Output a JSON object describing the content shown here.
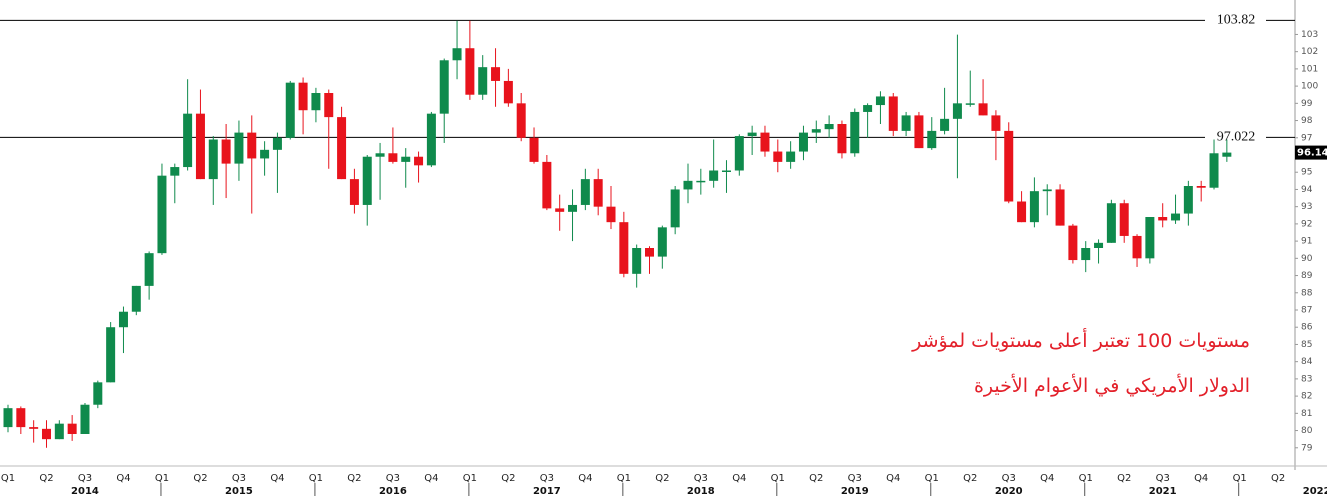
{
  "chart_data": {
    "type": "candlestick",
    "up_color": "#0f8a4c",
    "down_color": "#e8131c",
    "ylim": [
      78,
      105
    ],
    "yticks": [
      79,
      80,
      81,
      82,
      83,
      84,
      85,
      86,
      87,
      88,
      89,
      90,
      91,
      92,
      93,
      94,
      95,
      96,
      97,
      98,
      99,
      100,
      101,
      102,
      103
    ],
    "levels": [
      103.82,
      97.022
    ],
    "last_price": 96.14,
    "quarter_labels": [
      "Q1",
      "Q2",
      "Q3",
      "Q4",
      "Q1",
      "Q2",
      "Q3",
      "Q4",
      "Q1",
      "Q2",
      "Q3",
      "Q4",
      "Q1",
      "Q2",
      "Q3",
      "Q4",
      "Q1",
      "Q2",
      "Q3",
      "Q4",
      "Q1",
      "Q2",
      "Q3",
      "Q4",
      "Q1",
      "Q2",
      "Q3",
      "Q4",
      "Q1",
      "Q2",
      "Q3",
      "Q4",
      "Q1",
      "Q2"
    ],
    "year_labels": [
      "2014",
      "2015",
      "2016",
      "2017",
      "2018",
      "2019",
      "2020",
      "2021",
      "2022"
    ],
    "annotations": [
      "مستويات 100 تعتبر أعلى مستويات لمؤشر",
      "الدولار الأمريكي في الأعوام الأخيرة"
    ],
    "candles": [
      [
        80.2,
        81.5,
        79.9,
        81.3
      ],
      [
        81.3,
        81.4,
        79.8,
        80.2
      ],
      [
        80.2,
        80.6,
        79.3,
        80.1
      ],
      [
        80.1,
        80.6,
        79.0,
        79.5
      ],
      [
        79.5,
        80.6,
        79.5,
        80.4
      ],
      [
        80.4,
        80.9,
        79.4,
        79.8
      ],
      [
        79.8,
        81.6,
        79.8,
        81.5
      ],
      [
        81.5,
        82.9,
        81.3,
        82.8
      ],
      [
        82.8,
        86.3,
        82.8,
        86.0
      ],
      [
        86.0,
        87.2,
        84.5,
        86.9
      ],
      [
        86.9,
        88.4,
        86.7,
        88.4
      ],
      [
        88.4,
        90.4,
        87.6,
        90.3
      ],
      [
        90.3,
        95.5,
        90.2,
        94.8
      ],
      [
        94.8,
        95.5,
        93.2,
        95.3
      ],
      [
        95.3,
        100.4,
        95.1,
        98.4
      ],
      [
        98.4,
        99.8,
        94.6,
        94.6
      ],
      [
        94.6,
        97.1,
        93.1,
        96.9
      ],
      [
        96.9,
        97.8,
        93.5,
        95.5
      ],
      [
        95.5,
        98.0,
        94.5,
        97.3
      ],
      [
        97.3,
        98.3,
        92.6,
        95.8
      ],
      [
        95.8,
        96.8,
        94.8,
        96.3
      ],
      [
        96.3,
        97.3,
        93.8,
        97.0
      ],
      [
        97.0,
        100.3,
        96.9,
        100.2
      ],
      [
        100.2,
        100.5,
        97.2,
        98.6
      ],
      [
        98.6,
        99.9,
        97.9,
        99.6
      ],
      [
        99.6,
        99.8,
        95.2,
        98.2
      ],
      [
        98.2,
        98.8,
        94.6,
        94.6
      ],
      [
        94.6,
        95.2,
        92.6,
        93.1
      ],
      [
        93.1,
        96.0,
        91.9,
        95.9
      ],
      [
        95.9,
        96.7,
        93.4,
        96.1
      ],
      [
        96.1,
        97.6,
        95.5,
        95.6
      ],
      [
        95.6,
        96.4,
        94.1,
        95.9
      ],
      [
        95.9,
        96.2,
        94.4,
        95.4
      ],
      [
        95.4,
        98.5,
        95.3,
        98.4
      ],
      [
        98.4,
        101.6,
        96.7,
        101.5
      ],
      [
        101.5,
        103.8,
        100.4,
        102.2
      ],
      [
        102.2,
        103.8,
        99.2,
        99.5
      ],
      [
        99.5,
        101.8,
        99.2,
        101.1
      ],
      [
        101.1,
        102.2,
        98.8,
        100.3
      ],
      [
        100.3,
        101.0,
        98.8,
        99.0
      ],
      [
        99.0,
        99.6,
        96.8,
        97.0
      ],
      [
        97.0,
        97.6,
        95.5,
        95.6
      ],
      [
        95.6,
        96.0,
        92.8,
        92.9
      ],
      [
        92.9,
        93.7,
        91.6,
        92.7
      ],
      [
        92.7,
        94.0,
        91.0,
        93.1
      ],
      [
        93.1,
        95.2,
        92.8,
        94.6
      ],
      [
        94.6,
        95.2,
        92.5,
        93.0
      ],
      [
        93.0,
        94.2,
        91.7,
        92.1
      ],
      [
        92.1,
        92.7,
        88.9,
        89.1
      ],
      [
        89.1,
        90.8,
        88.3,
        90.6
      ],
      [
        90.6,
        90.7,
        89.1,
        90.1
      ],
      [
        90.1,
        91.9,
        89.4,
        91.8
      ],
      [
        91.8,
        94.2,
        91.4,
        94.0
      ],
      [
        94.0,
        95.5,
        93.2,
        94.5
      ],
      [
        94.5,
        95.2,
        93.7,
        94.5
      ],
      [
        94.5,
        96.9,
        94.1,
        95.1
      ],
      [
        95.1,
        95.7,
        93.8,
        95.1
      ],
      [
        95.1,
        97.2,
        94.8,
        97.1
      ],
      [
        97.1,
        97.7,
        96.0,
        97.3
      ],
      [
        97.3,
        97.7,
        95.9,
        96.2
      ],
      [
        96.2,
        96.9,
        95.0,
        95.6
      ],
      [
        95.6,
        96.8,
        95.2,
        96.2
      ],
      [
        96.2,
        97.7,
        95.7,
        97.3
      ],
      [
        97.3,
        98.0,
        96.7,
        97.5
      ],
      [
        97.5,
        98.3,
        97.0,
        97.8
      ],
      [
        97.8,
        98.0,
        95.8,
        96.1
      ],
      [
        96.1,
        98.7,
        95.9,
        98.5
      ],
      [
        98.5,
        99.0,
        97.0,
        98.9
      ],
      [
        98.9,
        99.7,
        97.8,
        99.4
      ],
      [
        99.4,
        99.6,
        97.1,
        97.4
      ],
      [
        97.4,
        98.5,
        97.1,
        98.3
      ],
      [
        98.3,
        98.5,
        96.4,
        96.4
      ],
      [
        96.4,
        98.2,
        96.3,
        97.4
      ],
      [
        97.4,
        99.9,
        97.2,
        98.1
      ],
      [
        98.1,
        102.99,
        94.65,
        99.0
      ],
      [
        99.0,
        100.9,
        98.8,
        99.0
      ],
      [
        99.0,
        100.4,
        98.3,
        98.3
      ],
      [
        98.3,
        98.6,
        95.7,
        97.4
      ],
      [
        97.4,
        97.9,
        93.2,
        93.3
      ],
      [
        93.3,
        93.9,
        92.1,
        92.1
      ],
      [
        92.1,
        94.7,
        91.8,
        93.9
      ],
      [
        93.9,
        94.3,
        92.5,
        94.0
      ],
      [
        94.0,
        94.3,
        91.9,
        91.9
      ],
      [
        91.9,
        92.0,
        89.7,
        89.9
      ],
      [
        89.9,
        91.0,
        89.2,
        90.6
      ],
      [
        90.6,
        91.1,
        89.7,
        90.9
      ],
      [
        90.9,
        93.4,
        90.9,
        93.2
      ],
      [
        93.2,
        93.4,
        90.9,
        91.3
      ],
      [
        91.3,
        91.4,
        89.5,
        90.0
      ],
      [
        90.0,
        92.4,
        89.7,
        92.4
      ],
      [
        92.4,
        93.2,
        91.8,
        92.2
      ],
      [
        92.2,
        93.7,
        92.0,
        92.6
      ],
      [
        92.6,
        94.5,
        91.9,
        94.2
      ],
      [
        94.2,
        94.5,
        93.3,
        94.1
      ],
      [
        94.1,
        96.9,
        94.0,
        96.1
      ],
      [
        95.9,
        96.9,
        95.6,
        96.14
      ]
    ]
  }
}
